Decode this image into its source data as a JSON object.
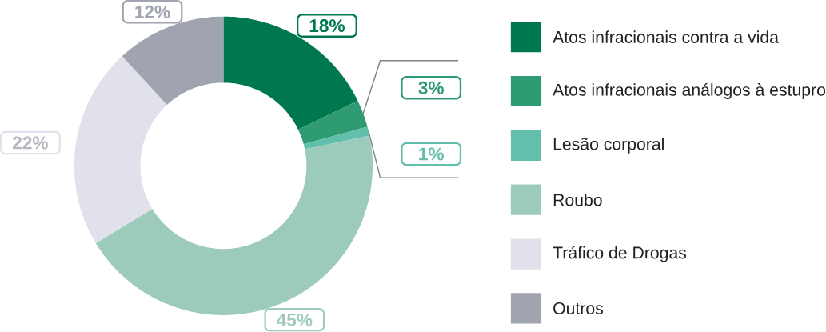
{
  "chart_data": {
    "type": "donut",
    "categories": [
      "Atos infracionais contra a vida",
      "Atos infracionais análogos à estupro",
      "Lesão corporal",
      "Roubo",
      "Tráfico de Drogas",
      "Outros"
    ],
    "values": [
      18,
      3,
      1,
      45,
      22,
      12
    ],
    "value_labels": [
      "18%",
      "3%",
      "1%",
      "45%",
      "22%",
      "12%"
    ],
    "colors": [
      "#00784f",
      "#2e9b72",
      "#62bfac",
      "#9dcbbb",
      "#e0e1ea",
      "#a0a4ae"
    ],
    "legend": "right"
  }
}
